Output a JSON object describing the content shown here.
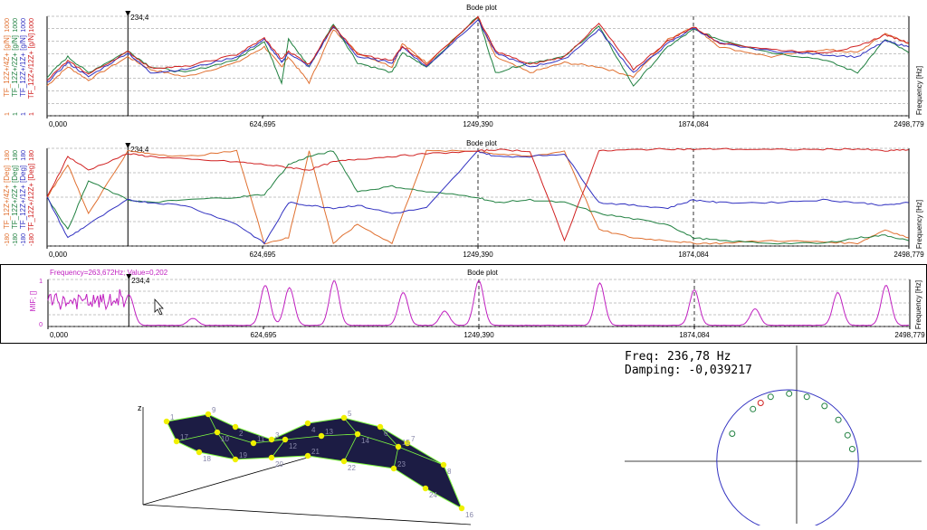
{
  "chart_data": [
    {
      "type": "line",
      "title": "Bode plot",
      "xlabel": "Frequency [Hz]",
      "xlim": [
        0,
        2498.779
      ],
      "x_ticks": [
        "0,000",
        "624,695",
        "1249,390",
        "1874,084",
        "2498,779"
      ],
      "cursor_label": "234,4",
      "yscale": "log",
      "grid": true,
      "series": [
        {
          "name": "TF_12Z+/4Z+ [g/N]",
          "tick_top": "1000",
          "tick_bottom": "1",
          "color": "#e07030"
        },
        {
          "name": "TF_12Z+/2Z+ [g/N]",
          "tick_top": "1000",
          "tick_bottom": "1",
          "color": "#208040"
        },
        {
          "name": "TF_12Z+/1Z+ [g/N]",
          "tick_top": "1000",
          "tick_bottom": "1",
          "color": "#3030c0"
        },
        {
          "name": "TF_12Z+/12Z+ [g/N]",
          "tick_top": "1000",
          "tick_bottom": "1",
          "color": "#d02020"
        }
      ],
      "peaks_hz": [
        60,
        234.4,
        630,
        700,
        830,
        1030,
        1249.39,
        1600,
        1874.084,
        2430
      ],
      "x": [
        0,
        60,
        120,
        234,
        300,
        400,
        550,
        630,
        680,
        700,
        760,
        830,
        900,
        1000,
        1030,
        1100,
        1249,
        1300,
        1400,
        1500,
        1600,
        1700,
        1800,
        1874,
        1950,
        2100,
        2250,
        2350,
        2430,
        2498
      ],
      "values": [
        [
          8,
          30,
          12,
          60,
          25,
          15,
          40,
          120,
          30,
          60,
          10,
          400,
          80,
          30,
          150,
          40,
          900,
          60,
          20,
          40,
          30,
          15,
          200,
          500,
          120,
          60,
          100,
          80,
          300,
          150
        ],
        [
          15,
          60,
          20,
          90,
          30,
          20,
          50,
          180,
          10,
          200,
          30,
          600,
          40,
          20,
          80,
          30,
          1000,
          20,
          40,
          60,
          500,
          8,
          120,
          400,
          200,
          80,
          50,
          20,
          200,
          80
        ],
        [
          10,
          40,
          15,
          80,
          20,
          25,
          60,
          200,
          40,
          80,
          30,
          500,
          60,
          40,
          120,
          30,
          800,
          80,
          30,
          50,
          400,
          20,
          150,
          450,
          150,
          90,
          70,
          60,
          180,
          120
        ],
        [
          12,
          45,
          18,
          85,
          28,
          30,
          70,
          220,
          50,
          90,
          35,
          550,
          70,
          45,
          130,
          35,
          950,
          90,
          35,
          60,
          600,
          25,
          180,
          480,
          160,
          100,
          80,
          120,
          280,
          160
        ]
      ]
    },
    {
      "type": "line",
      "title": "Bode plot",
      "xlabel": "Frequency [Hz]",
      "xlim": [
        0,
        2498.779
      ],
      "x_ticks": [
        "0,000",
        "624,695",
        "1249,390",
        "1874,084",
        "2498,779"
      ],
      "cursor_label": "234,4",
      "ylim": [
        -180,
        180
      ],
      "grid": true,
      "series": [
        {
          "name": "TF_12Z+/4Z+ [Deg]",
          "tick_top": "180",
          "tick_bottom": "-180",
          "color": "#e07030"
        },
        {
          "name": "TF_12Z+/2Z+ [Deg]",
          "tick_top": "180",
          "tick_bottom": "-180",
          "color": "#208040"
        },
        {
          "name": "TF_12Z+/1Z+ [Deg]",
          "tick_top": "180",
          "tick_bottom": "-180",
          "color": "#3030c0"
        },
        {
          "name": "TF_12Z+/12Z+ [Deg]",
          "tick_top": "180",
          "tick_bottom": "-180",
          "color": "#d02020"
        }
      ],
      "x": [
        0,
        60,
        120,
        234,
        300,
        400,
        550,
        630,
        700,
        760,
        830,
        900,
        1000,
        1100,
        1249,
        1300,
        1400,
        1500,
        1600,
        1700,
        1800,
        1874,
        1950,
        2100,
        2250,
        2350,
        2430,
        2498
      ],
      "values": [
        [
          0,
          120,
          -60,
          170,
          160,
          150,
          170,
          -170,
          -150,
          170,
          -170,
          -100,
          -170,
          170,
          170,
          160,
          150,
          170,
          -120,
          -150,
          -160,
          -170,
          -170,
          -160,
          -165,
          -170,
          -120,
          -150
        ],
        [
          0,
          -120,
          60,
          -10,
          -20,
          -10,
          0,
          10,
          120,
          150,
          170,
          20,
          40,
          20,
          0,
          -20,
          -10,
          -20,
          -60,
          -80,
          -100,
          -150,
          -160,
          -170,
          -170,
          -150,
          -140,
          -160
        ],
        [
          0,
          -150,
          -100,
          -10,
          -20,
          -30,
          -100,
          -170,
          -20,
          -30,
          -40,
          -30,
          -60,
          -40,
          170,
          150,
          150,
          160,
          -20,
          -30,
          -40,
          -10,
          -20,
          -20,
          -10,
          -20,
          -30,
          -20
        ],
        [
          0,
          150,
          100,
          160,
          150,
          140,
          130,
          120,
          110,
          100,
          130,
          140,
          150,
          160,
          170,
          175,
          170,
          -160,
          170,
          175,
          178,
          176,
          178,
          175,
          176,
          178,
          170,
          175
        ]
      ]
    },
    {
      "type": "line",
      "title": "Bode plot",
      "header_readout": "Frequency=263,672Hz; Value=0,202",
      "ylabel": "MIF; []",
      "xlabel": "Frequency [Hz]",
      "xlim": [
        0,
        2498.779
      ],
      "ylim": [
        0,
        1
      ],
      "y_ticks": [
        "0",
        "1"
      ],
      "x_ticks": [
        "0,000",
        "624,695",
        "1249,390",
        "1874,084",
        "2498,779"
      ],
      "cursor_label": "234,4",
      "grid": true,
      "series": [
        {
          "name": "MIF",
          "color": "#c020c0"
        }
      ],
      "peaks_hz": [
        234.4,
        420,
        630,
        700,
        830,
        1030,
        1150,
        1249.39,
        1600,
        1874.084,
        2050,
        2290,
        2430
      ],
      "peak_values": [
        0.65,
        0.15,
        0.85,
        0.8,
        0.95,
        0.7,
        0.3,
        0.95,
        0.9,
        0.75,
        0.35,
        0.7,
        0.85
      ]
    },
    {
      "type": "scatter",
      "header": {
        "freq_label": "Freq: 236,78 Hz",
        "damping_label": "Damping: -0,039217"
      },
      "points_green": [
        [
          -0.72,
          0.3
        ],
        [
          -0.45,
          0.62
        ],
        [
          -0.22,
          0.78
        ],
        [
          0.02,
          0.82
        ],
        [
          0.25,
          0.78
        ],
        [
          0.48,
          0.66
        ],
        [
          0.66,
          0.48
        ],
        [
          0.78,
          0.28
        ],
        [
          0.84,
          0.1
        ]
      ],
      "points_red": [
        [
          -0.35,
          0.7
        ]
      ],
      "circle": {
        "center": [
          0,
          -0.05
        ],
        "radius": 0.92
      }
    }
  ],
  "mode_shape": {
    "axis_label": "z",
    "node_labels": [
      "1",
      "2",
      "3",
      "4",
      "5",
      "6",
      "7",
      "8",
      "9",
      "10",
      "11",
      "12",
      "13",
      "14",
      "15",
      "16",
      "17",
      "18",
      "19",
      "20",
      "21",
      "22",
      "23",
      "24"
    ],
    "fill_color": "#1c1c44",
    "node_color": "#f0f000",
    "edge_color": "#80ff40"
  }
}
